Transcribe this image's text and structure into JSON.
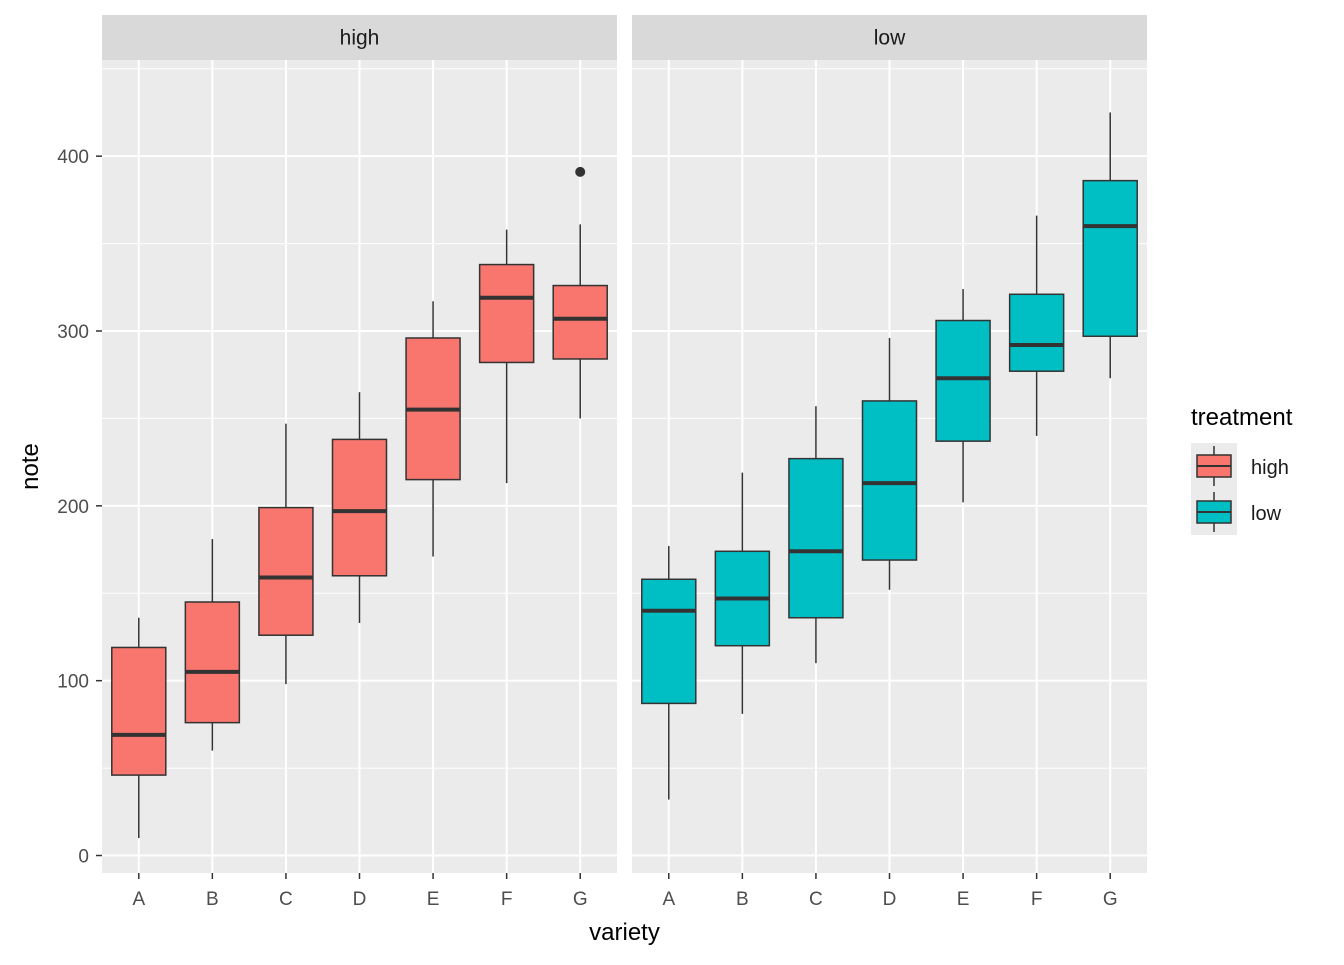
{
  "chart_data": {
    "type": "boxplot",
    "facet_variable": "treatment",
    "xlabel": "variety",
    "ylabel": "note",
    "ylim": [
      -10,
      455
    ],
    "yticks": [
      0,
      100,
      200,
      300,
      400
    ],
    "categories": [
      "A",
      "B",
      "C",
      "D",
      "E",
      "F",
      "G"
    ],
    "grid": true,
    "legend": {
      "title": "treatment",
      "position": "right",
      "items": [
        {
          "label": "high",
          "color": "#F8766D"
        },
        {
          "label": "low",
          "color": "#00BFC4"
        }
      ]
    },
    "panels": [
      {
        "strip_label": "high",
        "fill": "#F8766D",
        "boxes": [
          {
            "x": "A",
            "whisker_low": 10,
            "q1": 46,
            "median": 69,
            "q3": 119,
            "whisker_high": 136,
            "outliers": []
          },
          {
            "x": "B",
            "whisker_low": 60,
            "q1": 76,
            "median": 105,
            "q3": 145,
            "whisker_high": 181,
            "outliers": []
          },
          {
            "x": "C",
            "whisker_low": 98,
            "q1": 126,
            "median": 159,
            "q3": 199,
            "whisker_high": 247,
            "outliers": []
          },
          {
            "x": "D",
            "whisker_low": 133,
            "q1": 160,
            "median": 197,
            "q3": 238,
            "whisker_high": 265,
            "outliers": []
          },
          {
            "x": "E",
            "whisker_low": 171,
            "q1": 215,
            "median": 255,
            "q3": 296,
            "whisker_high": 317,
            "outliers": []
          },
          {
            "x": "F",
            "whisker_low": 213,
            "q1": 282,
            "median": 319,
            "q3": 338,
            "whisker_high": 358,
            "outliers": []
          },
          {
            "x": "G",
            "whisker_low": 250,
            "q1": 284,
            "median": 307,
            "q3": 326,
            "whisker_high": 361,
            "outliers": [
              391
            ]
          }
        ]
      },
      {
        "strip_label": "low",
        "fill": "#00BFC4",
        "boxes": [
          {
            "x": "A",
            "whisker_low": 32,
            "q1": 87,
            "median": 140,
            "q3": 158,
            "whisker_high": 177,
            "outliers": []
          },
          {
            "x": "B",
            "whisker_low": 81,
            "q1": 120,
            "median": 147,
            "q3": 174,
            "whisker_high": 219,
            "outliers": []
          },
          {
            "x": "C",
            "whisker_low": 110,
            "q1": 136,
            "median": 174,
            "q3": 227,
            "whisker_high": 257,
            "outliers": []
          },
          {
            "x": "D",
            "whisker_low": 152,
            "q1": 169,
            "median": 213,
            "q3": 260,
            "whisker_high": 296,
            "outliers": []
          },
          {
            "x": "E",
            "whisker_low": 202,
            "q1": 237,
            "median": 273,
            "q3": 306,
            "whisker_high": 324,
            "outliers": []
          },
          {
            "x": "F",
            "whisker_low": 240,
            "q1": 277,
            "median": 292,
            "q3": 321,
            "whisker_high": 366,
            "outliers": []
          },
          {
            "x": "G",
            "whisker_low": 273,
            "q1": 297,
            "median": 360,
            "q3": 386,
            "whisker_high": 425,
            "outliers": []
          }
        ]
      }
    ]
  }
}
